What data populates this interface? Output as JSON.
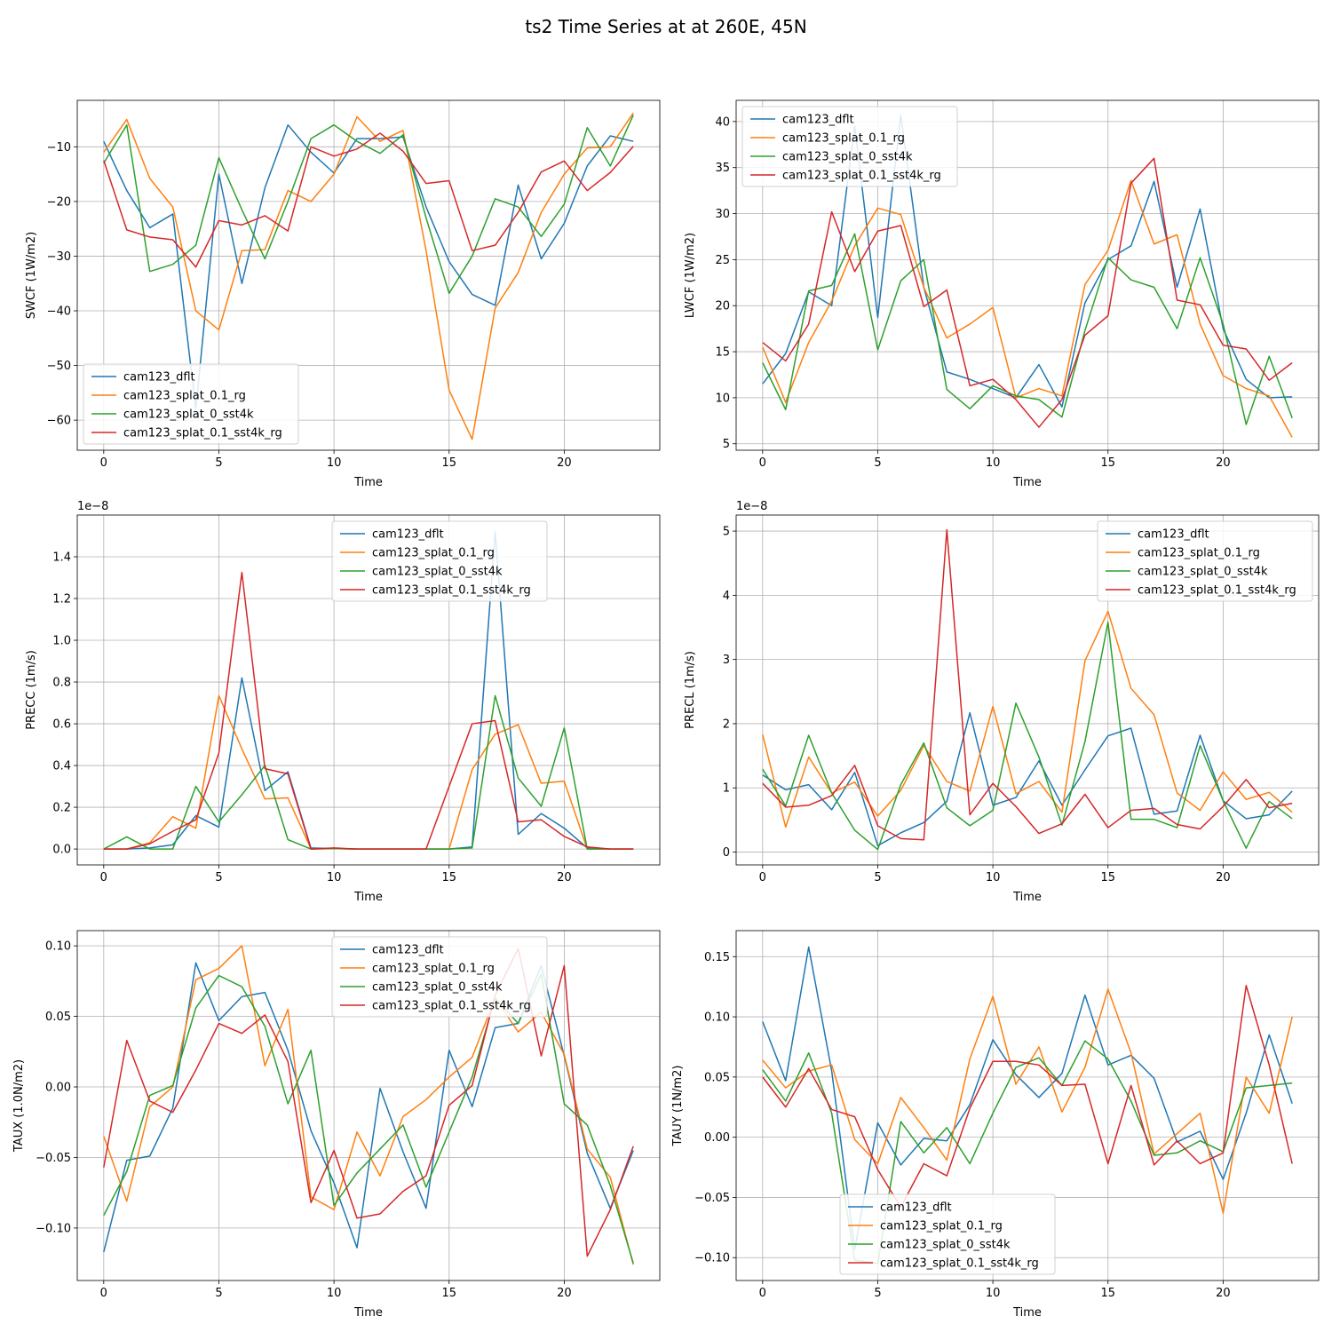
{
  "suptitle": "ts2 Time Series at at 260E, 45N",
  "series_names": [
    "cam123_dflt",
    "cam123_splat_0.1_rg",
    "cam123_splat_0_sst4k",
    "cam123_splat_0.1_sst4k_rg"
  ],
  "series_colors": [
    "#1f77b4",
    "#ff7f0e",
    "#2ca02c",
    "#d62728"
  ],
  "chart_data": [
    {
      "type": "line",
      "title": "",
      "xlabel": "Time",
      "ylabel": "SWCF (1W/m2)",
      "exponent_label": "",
      "xlim": [
        -1.15,
        24.15
      ],
      "ylim": [
        -65.5,
        -1.5
      ],
      "xticks": [
        0,
        5,
        10,
        15,
        20
      ],
      "yticks": [
        -60,
        -50,
        -40,
        -30,
        -20,
        -10
      ],
      "ytick_labels": [
        "−60",
        "−50",
        "−40",
        "−30",
        "−20",
        "−10"
      ],
      "legend_loc": "lower-left",
      "x": [
        0,
        1,
        2,
        3,
        4,
        5,
        6,
        7,
        8,
        9,
        10,
        11,
        12,
        13,
        14,
        15,
        16,
        17,
        18,
        19,
        20,
        21,
        22,
        23
      ],
      "series": [
        {
          "name": "cam123_dflt",
          "values": [
            -9,
            -18,
            -24.8,
            -22.3,
            -58,
            -15,
            -35,
            -17.5,
            -6,
            -11,
            -14.8,
            -8.5,
            -8.5,
            -8.2,
            -21,
            -31,
            -37,
            -39,
            -17,
            -30.5,
            -24,
            -13.5,
            -8,
            -9
          ]
        },
        {
          "name": "cam123_splat_0.1_rg",
          "values": [
            -11,
            -5,
            -15.8,
            -21,
            -40,
            -43.5,
            -29,
            -28.8,
            -18,
            -20,
            -15,
            -4.5,
            -9,
            -7,
            -29,
            -54.5,
            -63.5,
            -39.5,
            -33,
            -22,
            -15,
            -10.2,
            -10,
            -3.8
          ]
        },
        {
          "name": "cam123_splat_0_sst4k",
          "values": [
            -13,
            -6,
            -32.8,
            -31.5,
            -28,
            -12,
            -21.5,
            -30.5,
            -20,
            -8.5,
            -6,
            -9,
            -11.2,
            -7.8,
            -23,
            -36.8,
            -30,
            -19.5,
            -21,
            -26.4,
            -20.5,
            -6.5,
            -13.5,
            -4.2
          ]
        },
        {
          "name": "cam123_splat_0.1_sst4k_rg",
          "values": [
            -12.5,
            -25.2,
            -26.5,
            -27,
            -32,
            -23.5,
            -24.3,
            -22.6,
            -25.4,
            -10,
            -11.7,
            -10.4,
            -7.5,
            -10.8,
            -16.7,
            -16.2,
            -29,
            -28,
            -22,
            -14.6,
            -12.6,
            -18,
            -14.7,
            -9.9
          ]
        }
      ]
    },
    {
      "type": "line",
      "title": "",
      "xlabel": "Time",
      "ylabel": "LWCF (1W/m2)",
      "exponent_label": "",
      "xlim": [
        -1.15,
        24.15
      ],
      "ylim": [
        4.3,
        42.3
      ],
      "xticks": [
        0,
        5,
        10,
        15,
        20
      ],
      "yticks": [
        5,
        10,
        15,
        20,
        25,
        30,
        35,
        40
      ],
      "ytick_labels": [
        "5",
        "10",
        "15",
        "20",
        "25",
        "30",
        "35",
        "40"
      ],
      "legend_loc": "upper-left",
      "x": [
        0,
        1,
        2,
        3,
        4,
        5,
        6,
        7,
        8,
        9,
        10,
        11,
        12,
        13,
        14,
        15,
        16,
        17,
        18,
        19,
        20,
        21,
        22,
        23
      ],
      "series": [
        {
          "name": "cam123_dflt",
          "values": [
            11.5,
            14.8,
            21.5,
            20,
            39.5,
            18.7,
            40.7,
            22,
            12.8,
            12,
            11,
            10,
            13.6,
            9,
            20.3,
            25,
            26.5,
            33.5,
            22,
            30.5,
            17.5,
            12,
            10,
            10.1
          ]
        },
        {
          "name": "cam123_splat_0.1_rg",
          "values": [
            15.5,
            9.5,
            16,
            20.5,
            26.5,
            30.6,
            29.9,
            22,
            16.5,
            18,
            19.8,
            10,
            11,
            10.2,
            22.3,
            26,
            33.6,
            26.7,
            27.7,
            18,
            12.4,
            11,
            10.2,
            5.7
          ]
        },
        {
          "name": "cam123_splat_0_sst4k",
          "values": [
            13.8,
            8.7,
            21.6,
            22.2,
            27.8,
            15.2,
            22.7,
            25,
            10.9,
            8.8,
            11.3,
            10.2,
            9.8,
            7.9,
            17.3,
            25.2,
            22.8,
            22,
            17.5,
            25.2,
            18,
            7.1,
            14.5,
            7.8
          ]
        },
        {
          "name": "cam123_splat_0.1_sst4k_rg",
          "values": [
            16,
            14,
            18,
            30.2,
            23.7,
            28.1,
            28.7,
            19.9,
            21.7,
            11.3,
            12,
            9.8,
            6.8,
            9.8,
            16.8,
            18.9,
            33.3,
            36,
            20.6,
            20.1,
            15.7,
            15.3,
            11.9,
            13.8
          ]
        }
      ]
    },
    {
      "type": "line",
      "title": "",
      "xlabel": "Time",
      "ylabel": "PRECC (1m/s)",
      "exponent_label": "1e−8",
      "xlim": [
        -1.15,
        24.15
      ],
      "ylim": [
        -0.0762,
        1.6
      ],
      "xticks": [
        0,
        5,
        10,
        15,
        20
      ],
      "yticks": [
        0.0,
        0.2,
        0.4,
        0.6,
        0.8,
        1.0,
        1.2,
        1.4
      ],
      "ytick_labels": [
        "0.0",
        "0.2",
        "0.4",
        "0.6",
        "0.8",
        "1.0",
        "1.2",
        "1.4"
      ],
      "legend_loc": "upper-center",
      "x": [
        0,
        1,
        2,
        3,
        4,
        5,
        6,
        7,
        8,
        9,
        10,
        11,
        12,
        13,
        14,
        15,
        16,
        17,
        18,
        19,
        20,
        21,
        22,
        23
      ],
      "series": [
        {
          "name": "cam123_dflt",
          "values": [
            0,
            0,
            0.005,
            0.02,
            0.16,
            0.105,
            0.82,
            0.28,
            0.37,
            0.005,
            0.002,
            0,
            0,
            0,
            0,
            0,
            0.01,
            1.52,
            0.07,
            0.17,
            0.1,
            0.005,
            0,
            0
          ]
        },
        {
          "name": "cam123_splat_0.1_rg",
          "values": [
            0,
            0,
            0.03,
            0.155,
            0.1,
            0.735,
            0.48,
            0.24,
            0.245,
            0,
            0.003,
            0,
            0,
            0,
            0,
            0,
            0.38,
            0.55,
            0.595,
            0.315,
            0.325,
            0,
            0,
            0
          ]
        },
        {
          "name": "cam123_splat_0_sst4k",
          "values": [
            0,
            0.058,
            0,
            0,
            0.3,
            0.13,
            0.26,
            0.4,
            0.045,
            0,
            0.002,
            0,
            0,
            0,
            0,
            0,
            0.005,
            0.735,
            0.34,
            0.205,
            0.58,
            0,
            0,
            0
          ]
        },
        {
          "name": "cam123_splat_0.1_sst4k_rg",
          "values": [
            0,
            0,
            0.025,
            0.085,
            0.14,
            0.46,
            1.325,
            0.385,
            0.36,
            0,
            0.005,
            0,
            0,
            0,
            0,
            0.3,
            0.6,
            0.615,
            0.13,
            0.14,
            0.06,
            0.01,
            0,
            0
          ]
        }
      ]
    },
    {
      "type": "line",
      "title": "",
      "xlabel": "Time",
      "ylabel": "PRECL (1m/s)",
      "exponent_label": "1e−8",
      "xlim": [
        -1.15,
        24.15
      ],
      "ylim": [
        -0.2,
        5.25
      ],
      "xticks": [
        0,
        5,
        10,
        15,
        20
      ],
      "yticks": [
        0,
        1,
        2,
        3,
        4,
        5
      ],
      "ytick_labels": [
        "0",
        "1",
        "2",
        "3",
        "4",
        "5"
      ],
      "legend_loc": "upper-right",
      "x": [
        0,
        1,
        2,
        3,
        4,
        5,
        6,
        7,
        8,
        9,
        10,
        11,
        12,
        13,
        14,
        15,
        16,
        17,
        18,
        19,
        20,
        21,
        22,
        23
      ],
      "series": [
        {
          "name": "cam123_dflt",
          "values": [
            1.2,
            0.97,
            1.05,
            0.66,
            1.24,
            0.1,
            0.3,
            0.46,
            0.79,
            2.17,
            0.73,
            0.85,
            1.42,
            0.73,
            1.28,
            1.81,
            1.93,
            0.59,
            0.64,
            1.82,
            0.8,
            0.52,
            0.58,
            0.95
          ]
        },
        {
          "name": "cam123_splat_0.1_rg",
          "values": [
            1.83,
            0.39,
            1.48,
            0.92,
            1.09,
            0.56,
            0.96,
            1.66,
            1.1,
            0.95,
            2.27,
            0.91,
            1.1,
            0.62,
            2.98,
            3.75,
            2.55,
            2.14,
            0.92,
            0.65,
            1.25,
            0.82,
            0.93,
            0.62
          ]
        },
        {
          "name": "cam123_splat_0_sst4k",
          "values": [
            1.29,
            0.72,
            1.82,
            0.92,
            0.34,
            0.04,
            1.05,
            1.7,
            0.69,
            0.41,
            0.65,
            2.32,
            1.48,
            0.42,
            1.72,
            3.58,
            0.51,
            0.51,
            0.38,
            1.66,
            0.8,
            0.06,
            0.79,
            0.52
          ]
        },
        {
          "name": "cam123_splat_0.1_sst4k_rg",
          "values": [
            1.07,
            0.7,
            0.73,
            0.88,
            1.35,
            0.41,
            0.21,
            0.19,
            5.02,
            0.58,
            1.07,
            0.71,
            0.29,
            0.44,
            0.9,
            0.38,
            0.65,
            0.68,
            0.43,
            0.36,
            0.71,
            1.13,
            0.69,
            0.76
          ]
        }
      ]
    },
    {
      "type": "line",
      "title": "",
      "xlabel": "Time",
      "ylabel": "TAUX (1.0N/m2)",
      "exponent_label": "",
      "xlim": [
        -1.15,
        24.15
      ],
      "ylim": [
        -0.1372,
        0.1108
      ],
      "xticks": [
        0,
        5,
        10,
        15,
        20
      ],
      "yticks": [
        -0.1,
        -0.05,
        0.0,
        0.05,
        0.1
      ],
      "ytick_labels": [
        "−0.10",
        "−0.05",
        "0.00",
        "0.05",
        "0.10"
      ],
      "legend_loc": "upper-center",
      "x": [
        0,
        1,
        2,
        3,
        4,
        5,
        6,
        7,
        8,
        9,
        10,
        11,
        12,
        13,
        14,
        15,
        16,
        17,
        18,
        19,
        20,
        21,
        22,
        23
      ],
      "series": [
        {
          "name": "cam123_dflt",
          "values": [
            -0.117,
            -0.052,
            -0.049,
            -0.015,
            0.088,
            0.047,
            0.064,
            0.067,
            0.026,
            -0.031,
            -0.068,
            -0.114,
            -0.001,
            -0.046,
            -0.086,
            0.026,
            -0.014,
            0.042,
            0.045,
            0.086,
            0.022,
            -0.047,
            -0.086,
            -0.045
          ]
        },
        {
          "name": "cam123_splat_0.1_rg",
          "values": [
            -0.035,
            -0.081,
            -0.014,
            0,
            0.076,
            0.084,
            0.1,
            0.015,
            0.055,
            -0.078,
            -0.087,
            -0.032,
            -0.063,
            -0.021,
            -0.009,
            0.007,
            0.021,
            0.063,
            0.039,
            0.053,
            0.023,
            -0.044,
            -0.064,
            -0.126
          ]
        },
        {
          "name": "cam123_splat_0_sst4k",
          "values": [
            -0.091,
            -0.06,
            -0.006,
            0.001,
            0.056,
            0.079,
            0.071,
            0.043,
            -0.012,
            0.026,
            -0.084,
            -0.061,
            -0.044,
            -0.027,
            -0.071,
            -0.032,
            0.007,
            0.063,
            0.045,
            0.08,
            -0.012,
            -0.027,
            -0.07,
            -0.125
          ]
        },
        {
          "name": "cam123_splat_0.1_sst4k_rg",
          "values": [
            -0.057,
            0.033,
            -0.01,
            -0.018,
            0.012,
            0.045,
            0.038,
            0.051,
            0.018,
            -0.082,
            -0.045,
            -0.093,
            -0.09,
            -0.074,
            -0.063,
            -0.013,
            0.001,
            0.065,
            0.098,
            0.022,
            0.086,
            -0.12,
            -0.087,
            -0.042
          ]
        }
      ]
    },
    {
      "type": "line",
      "title": "",
      "xlabel": "Time",
      "ylabel": "TAUY (1N/m2)",
      "exponent_label": "",
      "xlim": [
        -1.15,
        24.15
      ],
      "ylim": [
        -0.119,
        0.1716
      ],
      "xticks": [
        0,
        5,
        10,
        15,
        20
      ],
      "yticks": [
        -0.1,
        -0.05,
        0.0,
        0.05,
        0.1,
        0.15
      ],
      "ytick_labels": [
        "−0.10",
        "−0.05",
        "0.00",
        "0.05",
        "0.10",
        "0.15"
      ],
      "legend_loc": "lower-center",
      "x": [
        0,
        1,
        2,
        3,
        4,
        5,
        6,
        7,
        8,
        9,
        10,
        11,
        12,
        13,
        14,
        15,
        16,
        17,
        18,
        19,
        20,
        21,
        22,
        23
      ],
      "series": [
        {
          "name": "cam123_dflt",
          "values": [
            0.096,
            0.047,
            0.158,
            0.055,
            -0.093,
            0.012,
            -0.023,
            -0.001,
            -0.003,
            0.027,
            0.081,
            0.052,
            0.033,
            0.053,
            0.118,
            0.06,
            0.068,
            0.049,
            -0.004,
            0.005,
            -0.035,
            0.02,
            0.085,
            0.028
          ]
        },
        {
          "name": "cam123_splat_0.1_rg",
          "values": [
            0.064,
            0.041,
            0.055,
            0.06,
            -0.002,
            -0.022,
            0.033,
            0.008,
            -0.019,
            0.065,
            0.117,
            0.044,
            0.075,
            0.021,
            0.058,
            0.123,
            0.07,
            -0.014,
            0.003,
            0.02,
            -0.063,
            0.05,
            0.02,
            0.1
          ]
        },
        {
          "name": "cam123_splat_0_sst4k",
          "values": [
            0.056,
            0.03,
            0.07,
            0.02,
            -0.102,
            -0.105,
            0.013,
            -0.013,
            0.008,
            -0.022,
            0.02,
            0.058,
            0.066,
            0.043,
            0.08,
            0.065,
            0.03,
            -0.015,
            -0.013,
            -0.003,
            -0.012,
            0.041,
            0.043,
            0.045
          ]
        },
        {
          "name": "cam123_splat_0.1_sst4k_rg",
          "values": [
            0.05,
            0.025,
            0.057,
            0.023,
            0.017,
            -0.027,
            -0.058,
            -0.022,
            -0.032,
            0.024,
            0.063,
            0.063,
            0.06,
            0.043,
            0.044,
            -0.022,
            0.043,
            -0.023,
            -0.003,
            -0.022,
            -0.013,
            0.126,
            0.06,
            -0.022
          ]
        }
      ]
    }
  ]
}
